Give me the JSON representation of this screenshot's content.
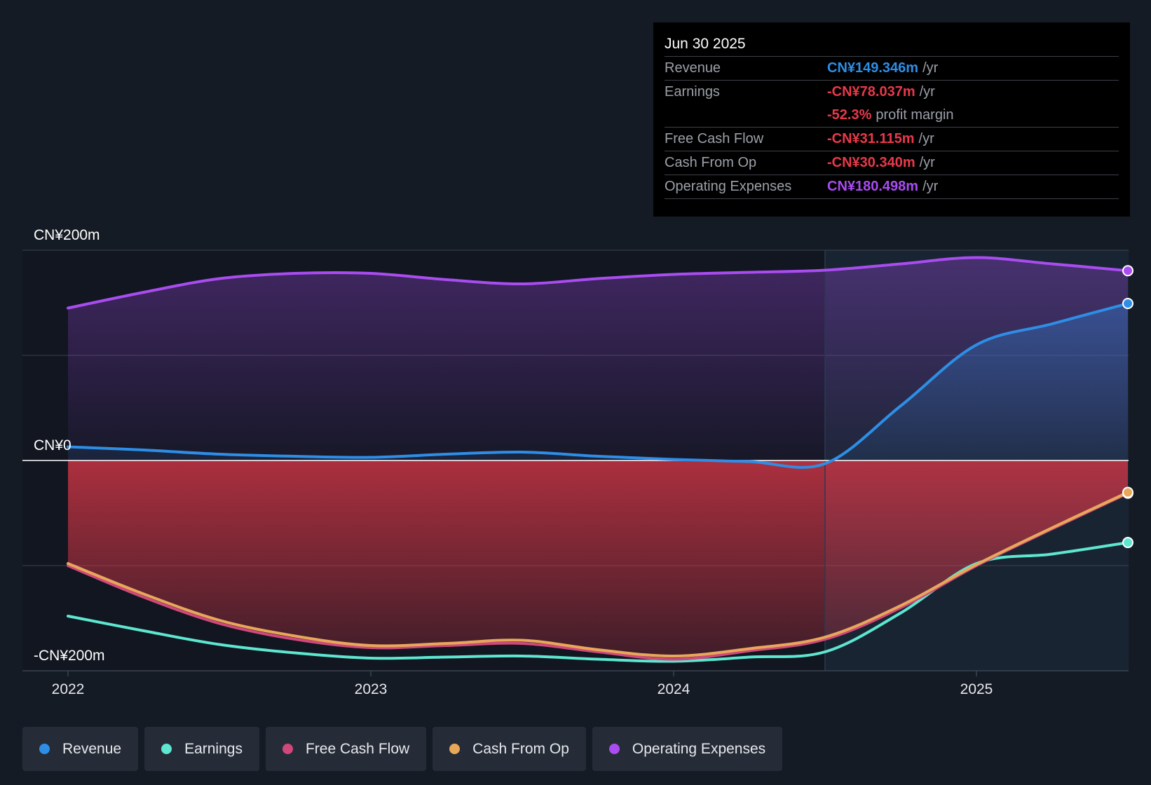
{
  "colors": {
    "background": "#151b24",
    "revenue": "#2e8ee6",
    "earnings": "#5ee6d0",
    "free_cash_flow": "#d0487a",
    "cash_from_op": "#e8a85a",
    "operating_expenses": "#a94cf0",
    "negative_value": "#e8394a"
  },
  "tooltip": {
    "date": "Jun 30 2025",
    "rows": [
      {
        "label": "Revenue",
        "value": "CN¥149.346m",
        "unit": "/yr",
        "color": "#2e8ee6"
      },
      {
        "label": "Earnings",
        "value": "-CN¥78.037m",
        "unit": "/yr",
        "color": "#e8394a"
      },
      {
        "label": "",
        "value": "-52.3%",
        "unit": "profit margin",
        "color": "#e8394a"
      },
      {
        "label": "Free Cash Flow",
        "value": "-CN¥31.115m",
        "unit": "/yr",
        "color": "#e8394a"
      },
      {
        "label": "Cash From Op",
        "value": "-CN¥30.340m",
        "unit": "/yr",
        "color": "#e8394a"
      },
      {
        "label": "Operating Expenses",
        "value": "CN¥180.498m",
        "unit": "/yr",
        "color": "#a94cf0"
      }
    ]
  },
  "chart_data": {
    "type": "line",
    "title": "",
    "xlabel": "",
    "ylabel": "",
    "x_ticks": [
      "2022",
      "2023",
      "2024",
      "2025"
    ],
    "x_range": [
      2022.0,
      2025.5
    ],
    "ylim": [
      -200,
      200
    ],
    "y_tick_labels": [
      "CN¥200m",
      "CN¥0",
      "-CN¥200m"
    ],
    "highlight_from": 2024.5,
    "x": [
      2022.0,
      2022.25,
      2022.5,
      2022.75,
      2023.0,
      2023.25,
      2023.5,
      2023.75,
      2024.0,
      2024.25,
      2024.5,
      2024.75,
      2025.0,
      2025.25,
      2025.5
    ],
    "series": [
      {
        "name": "Revenue",
        "key": "revenue",
        "values": [
          13,
          10,
          6,
          4,
          3,
          6,
          8,
          4,
          1,
          -1,
          -3,
          52,
          110,
          130,
          149.346
        ]
      },
      {
        "name": "Earnings",
        "key": "earnings",
        "values": [
          -148,
          -162,
          -175,
          -183,
          -188,
          -187,
          -186,
          -189,
          -191,
          -187,
          -182,
          -145,
          -98,
          -89,
          -78.037
        ]
      },
      {
        "name": "Free Cash Flow",
        "key": "free_cash_flow",
        "values": [
          -100,
          -130,
          -155,
          -170,
          -178,
          -176,
          -174,
          -182,
          -189,
          -181,
          -170,
          -140,
          -100,
          -65,
          -31.115
        ]
      },
      {
        "name": "Cash From Op",
        "key": "cash_from_op",
        "values": [
          -98,
          -127,
          -152,
          -167,
          -176,
          -174,
          -171,
          -180,
          -186,
          -179,
          -168,
          -138,
          -99,
          -64,
          -30.34
        ]
      },
      {
        "name": "Operating Expenses",
        "key": "operating_expenses",
        "values": [
          145,
          160,
          173,
          178,
          178,
          172,
          168,
          173,
          177,
          179,
          181,
          187,
          193,
          187,
          180.498
        ]
      }
    ]
  },
  "legend": [
    {
      "label": "Revenue",
      "color": "#2e8ee6"
    },
    {
      "label": "Earnings",
      "color": "#5ee6d0"
    },
    {
      "label": "Free Cash Flow",
      "color": "#d0487a"
    },
    {
      "label": "Cash From Op",
      "color": "#e8a85a"
    },
    {
      "label": "Operating Expenses",
      "color": "#a94cf0"
    }
  ]
}
